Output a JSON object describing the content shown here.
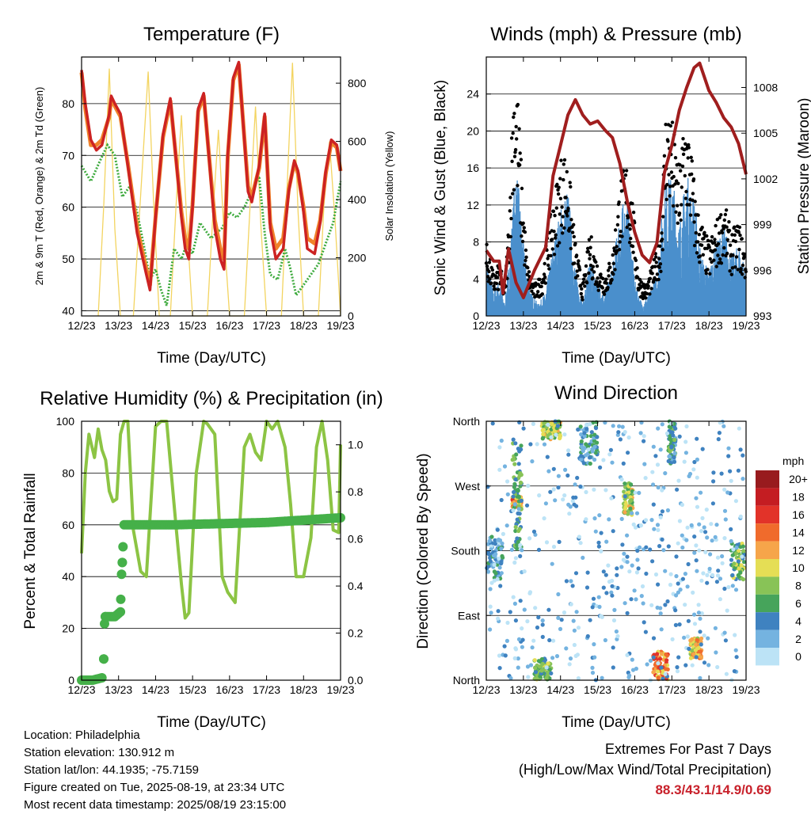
{
  "temperature": {
    "title": "Temperature (F)",
    "xlabel": "Time (Day/UTC)",
    "ylabel_left": "2m & 9m T (Red, Orange) & 2m Td (Green)",
    "ylabel_right": "Solar Insolation (Yellow)"
  },
  "winds": {
    "title": "Winds (mph) & Pressure (mb)",
    "xlabel": "Time (Day/UTC)",
    "ylabel_left": "Sonic Wind & Gust (Blue, Black)",
    "ylabel_right": "Station Pressure (Maroon)"
  },
  "humidity": {
    "title": "Relative Humidity (%) & Precipitation (in)",
    "xlabel": "Time (Day/UTC)",
    "ylabel_left": "Percent & Total Rainfall"
  },
  "direction": {
    "title": "Wind Direction",
    "xlabel": "Time (Day/UTC)",
    "ylabel_left": "Direction (Colored By Speed)",
    "legend_unit": "mph",
    "legend_labels": [
      "20+",
      "18",
      "16",
      "14",
      "12",
      "10",
      "8",
      "6",
      "4",
      "2",
      "0"
    ],
    "legend_colors": [
      "#981b1e",
      "#c41d22",
      "#e23329",
      "#f06b2c",
      "#f6a54a",
      "#e5de55",
      "#88c357",
      "#46a45b",
      "#3f82c0",
      "#74b3e0",
      "#bce3f6"
    ]
  },
  "info": {
    "location": "Location: Philadelphia",
    "elevation": "Station elevation: 130.912 m",
    "latlon": "Station lat/lon: 44.1935; -75.7159",
    "created": "Figure created on Tue, 2025-08-19, at 23:34 UTC",
    "latest": "Most recent data timestamp: 2025/08/19 23:15:00"
  },
  "extremes": {
    "line1": "Extremes For Past 7 Days",
    "line2": "(High/Low/Max Wind/Total Precipitation)",
    "values": "88.3/43.1/14.9/0.69"
  },
  "chart_data": [
    {
      "type": "line",
      "title": "Temperature (F)",
      "xlabel": "Time (Day/UTC)",
      "ylabel": "2m & 9m T (Red, Orange) & 2m Td (Green)",
      "y2label": "Solar Insolation (Yellow)",
      "x_ticks": [
        "12/23",
        "13/23",
        "14/23",
        "15/23",
        "16/23",
        "17/23",
        "18/23",
        "19/23"
      ],
      "xlim": [
        0,
        7
      ],
      "ylim": [
        39,
        89
      ],
      "y_ticks": [
        40,
        50,
        60,
        70,
        80
      ],
      "y2lim": [
        0,
        890
      ],
      "y2_ticks": [
        0,
        200,
        400,
        600,
        800
      ],
      "grid": true,
      "series": [
        {
          "name": "2m T",
          "color": "#cc2222",
          "axis": "left",
          "x": [
            0,
            0.1,
            0.25,
            0.4,
            0.55,
            0.75,
            0.8,
            0.9,
            1.05,
            1.25,
            1.5,
            1.75,
            1.85,
            2.0,
            2.2,
            2.4,
            2.7,
            2.8,
            2.9,
            3.0,
            3.15,
            3.3,
            3.6,
            3.75,
            3.85,
            3.95,
            4.1,
            4.25,
            4.5,
            4.6,
            4.8,
            4.95,
            5.1,
            5.25,
            5.45,
            5.6,
            5.75,
            5.85,
            6.0,
            6.1,
            6.3,
            6.45,
            6.6,
            6.75,
            6.9,
            7.0
          ],
          "y": [
            86.5,
            80,
            73,
            71,
            72,
            78,
            81.5,
            80,
            78,
            68,
            55,
            47,
            44,
            58,
            74,
            81,
            58,
            52,
            50,
            60,
            79,
            82,
            56,
            50,
            48,
            70,
            85,
            88,
            63,
            61,
            68,
            78,
            56,
            50,
            52,
            63,
            69,
            67,
            59,
            52,
            51,
            57,
            67,
            73,
            72,
            67
          ]
        },
        {
          "name": "9m T",
          "color": "#f0822a",
          "axis": "left",
          "x": [
            0,
            0.1,
            0.25,
            0.4,
            0.55,
            0.75,
            0.8,
            0.9,
            1.05,
            1.25,
            1.5,
            1.75,
            1.85,
            2.0,
            2.2,
            2.4,
            2.7,
            2.8,
            2.9,
            3.0,
            3.15,
            3.3,
            3.6,
            3.75,
            3.85,
            3.95,
            4.1,
            4.25,
            4.5,
            4.6,
            4.8,
            4.95,
            5.1,
            5.25,
            5.45,
            5.6,
            5.75,
            5.85,
            6.0,
            6.1,
            6.3,
            6.45,
            6.6,
            6.75,
            6.9,
            7.0
          ],
          "y": [
            86,
            79,
            72,
            72,
            73,
            77.5,
            81,
            79.5,
            77.5,
            68.5,
            56,
            48,
            45,
            58,
            73.5,
            80.5,
            59,
            54,
            52,
            60.5,
            78.5,
            81.5,
            57.5,
            52,
            50,
            69.5,
            84.5,
            87.5,
            64,
            62,
            67.5,
            77.5,
            57,
            52,
            54,
            63.5,
            68.5,
            66.5,
            60,
            54,
            53,
            57.5,
            66.5,
            72.5,
            71.5,
            67
          ]
        },
        {
          "name": "2m Td",
          "color": "#3fab3f",
          "axis": "left",
          "x": [
            0,
            0.25,
            0.5,
            0.7,
            0.9,
            1.1,
            1.3,
            1.5,
            1.7,
            1.85,
            2.0,
            2.15,
            2.3,
            2.5,
            2.7,
            2.85,
            3.0,
            3.2,
            3.5,
            3.8,
            4.0,
            4.2,
            4.4,
            4.6,
            4.8,
            4.95,
            5.1,
            5.3,
            5.5,
            5.65,
            5.8,
            6.0,
            6.2,
            6.4,
            6.6,
            6.8,
            7.0
          ],
          "y": [
            68,
            65,
            69,
            72,
            70,
            62,
            64,
            59,
            52,
            46,
            48,
            44,
            41,
            52,
            50,
            53,
            51,
            57,
            54,
            56,
            59,
            58,
            60,
            63,
            66,
            55,
            47,
            46,
            52,
            48,
            43,
            45,
            47,
            49,
            53,
            57,
            65
          ]
        },
        {
          "name": "Solar Insolation",
          "color": "#f3d460",
          "axis": "right",
          "x": [
            0.45,
            0.6,
            0.75,
            0.9,
            1.05,
            1.4,
            1.6,
            1.8,
            1.95,
            2.1,
            2.4,
            2.55,
            2.7,
            2.85,
            3.0,
            3.4,
            3.55,
            3.7,
            3.85,
            4.0,
            4.4,
            4.55,
            4.7,
            4.85,
            5.0,
            5.4,
            5.55,
            5.7,
            5.85,
            6.0,
            6.4,
            6.55,
            6.7,
            6.85,
            7.0
          ],
          "y": [
            0,
            380,
            850,
            300,
            0,
            0,
            420,
            840,
            380,
            0,
            0,
            370,
            690,
            310,
            0,
            0,
            350,
            640,
            280,
            0,
            0,
            370,
            720,
            300,
            0,
            0,
            430,
            870,
            360,
            0,
            0,
            380,
            600,
            330,
            0
          ]
        }
      ]
    },
    {
      "type": "line",
      "title": "Winds (mph) & Pressure (mb)",
      "xlabel": "Time (Day/UTC)",
      "ylabel": "Sonic Wind & Gust (Blue, Black)",
      "y2label": "Station Pressure (Maroon)",
      "x_ticks": [
        "12/23",
        "13/23",
        "14/23",
        "15/23",
        "16/23",
        "17/23",
        "18/23",
        "19/23"
      ],
      "xlim": [
        0,
        7
      ],
      "ylim": [
        0,
        28
      ],
      "y_ticks": [
        0,
        4,
        8,
        12,
        16,
        20,
        24
      ],
      "y2lim": [
        993,
        1010
      ],
      "y2_ticks": [
        993,
        996,
        999,
        1002,
        1005,
        1008
      ],
      "grid": true,
      "series": [
        {
          "name": "Sonic Wind",
          "color": "#4a8fcc",
          "axis": "left",
          "x": [
            0,
            0.2,
            0.35,
            0.5,
            0.65,
            0.8,
            0.9,
            1.0,
            1.2,
            1.4,
            1.6,
            1.8,
            2.0,
            2.2,
            2.4,
            2.6,
            2.8,
            3.0,
            3.2,
            3.4,
            3.6,
            3.8,
            4.0,
            4.2,
            4.4,
            4.6,
            4.8,
            5.0,
            5.2,
            5.4,
            5.6,
            5.8,
            6.0,
            6.2,
            6.4,
            6.6,
            6.8,
            7.0
          ],
          "y": [
            5,
            2,
            3,
            1,
            6,
            13,
            10,
            6,
            2,
            1,
            2,
            6,
            9,
            11,
            4,
            1,
            5,
            3,
            2,
            4,
            9,
            10,
            3,
            1,
            2,
            4,
            11,
            12,
            8,
            12,
            10,
            5,
            4,
            6,
            8,
            5,
            6,
            4
          ]
        },
        {
          "name": "Gust",
          "color": "#000000",
          "axis": "left",
          "x": [
            0,
            0.2,
            0.35,
            0.5,
            0.6,
            0.75,
            0.85,
            0.95,
            1.1,
            1.3,
            1.5,
            1.7,
            1.9,
            2.05,
            2.2,
            2.4,
            2.6,
            2.8,
            3.0,
            3.2,
            3.4,
            3.6,
            3.8,
            3.95,
            4.1,
            4.3,
            4.5,
            4.7,
            4.85,
            5.0,
            5.2,
            5.35,
            5.5,
            5.65,
            5.8,
            6.0,
            6.2,
            6.4,
            6.6,
            6.8,
            7.0
          ],
          "y": [
            7,
            4,
            5,
            3,
            9,
            25,
            21,
            14,
            5,
            3,
            4,
            9,
            13,
            16,
            15,
            7,
            3,
            8,
            5,
            4,
            6,
            13,
            15,
            11,
            4,
            3,
            5,
            8,
            21,
            19,
            14,
            20,
            17,
            11,
            9,
            7,
            9,
            11,
            8,
            9,
            6
          ]
        },
        {
          "name": "Station Pressure",
          "color": "#a01e1e",
          "axis": "right",
          "x": [
            0,
            0.2,
            0.35,
            0.45,
            0.6,
            0.8,
            1.0,
            1.3,
            1.6,
            1.8,
            2.0,
            2.2,
            2.4,
            2.6,
            2.8,
            3.0,
            3.2,
            3.4,
            3.6,
            3.8,
            4.0,
            4.2,
            4.4,
            4.6,
            4.8,
            5.0,
            5.2,
            5.4,
            5.6,
            5.75,
            6.0,
            6.2,
            6.4,
            6.6,
            6.8,
            7.0
          ],
          "y": [
            997.3,
            996.6,
            996.6,
            994.5,
            997.4,
            995.2,
            994.2,
            996.0,
            997.5,
            1002.2,
            1004.2,
            1006.2,
            1007.2,
            1006.2,
            1005.6,
            1005.8,
            1005.2,
            1004.7,
            1003.0,
            1000.5,
            998.5,
            997.0,
            996.5,
            997.8,
            1002.4,
            1004.2,
            1006.5,
            1008.0,
            1009.3,
            1009.6,
            1007.8,
            1007.0,
            1006.0,
            1005.4,
            1004.3,
            1002.3
          ]
        }
      ]
    },
    {
      "type": "line",
      "title": "Relative Humidity (%) & Precipitation (in)",
      "xlabel": "Time (Day/UTC)",
      "ylabel": "Percent & Total Rainfall",
      "x_ticks": [
        "12/23",
        "13/23",
        "14/23",
        "15/23",
        "16/23",
        "17/23",
        "18/23",
        "19/23"
      ],
      "xlim": [
        0,
        7
      ],
      "ylim": [
        0,
        100
      ],
      "y_ticks": [
        0,
        20,
        40,
        60,
        80,
        100
      ],
      "y2lim": [
        0,
        1.1
      ],
      "y2_ticks": [
        0.0,
        0.2,
        0.4,
        0.6,
        0.8,
        1.0
      ],
      "grid": true,
      "series": [
        {
          "name": "Relative Humidity",
          "color": "#8cc444",
          "axis": "left",
          "x": [
            0,
            0.1,
            0.2,
            0.35,
            0.45,
            0.55,
            0.65,
            0.75,
            0.85,
            0.95,
            1.05,
            1.15,
            1.25,
            1.4,
            1.6,
            1.75,
            2.0,
            2.15,
            2.3,
            2.55,
            2.7,
            2.8,
            2.9,
            3.1,
            3.3,
            3.4,
            3.6,
            3.8,
            3.95,
            4.15,
            4.4,
            4.55,
            4.7,
            4.85,
            5.0,
            5.15,
            5.3,
            5.5,
            5.65,
            5.8,
            6.0,
            6.2,
            6.35,
            6.5,
            6.65,
            6.8,
            6.95,
            7.0
          ],
          "y": [
            49,
            80,
            95,
            86,
            97,
            89,
            85,
            73,
            69,
            70,
            95,
            100,
            100,
            58,
            42,
            40,
            98,
            100,
            100,
            60,
            37,
            24,
            26,
            80,
            100,
            99,
            95,
            40,
            34,
            30,
            90,
            95,
            88,
            85,
            100,
            97,
            100,
            90,
            68,
            40,
            40,
            55,
            90,
            100,
            85,
            58,
            57,
            91
          ]
        },
        {
          "name": "Total Rainfall",
          "color": "#45b049",
          "axis": "right",
          "x": [
            0,
            0.3,
            0.55,
            0.6,
            0.62,
            0.64,
            0.68,
            0.9,
            1.05,
            1.08,
            1.1,
            1.13,
            1.15,
            2.5,
            5.0,
            6.0,
            7.0
          ],
          "y": [
            0.0,
            0.0,
            0.01,
            0.09,
            0.24,
            0.27,
            0.27,
            0.27,
            0.29,
            0.45,
            0.5,
            0.6,
            0.66,
            0.66,
            0.67,
            0.68,
            0.69
          ]
        }
      ]
    },
    {
      "type": "scatter",
      "title": "Wind Direction",
      "xlabel": "Time (Day/UTC)",
      "ylabel": "Direction (Colored By Speed)",
      "x_ticks": [
        "12/23",
        "13/23",
        "14/23",
        "15/23",
        "16/23",
        "17/23",
        "18/23",
        "19/23"
      ],
      "xlim": [
        0,
        7
      ],
      "y_ticks": [
        "North",
        "East",
        "South",
        "West",
        "North"
      ],
      "ylim": [
        0,
        360
      ],
      "colorbar_unit": "mph",
      "clusters": [
        {
          "x": [
            0.05,
            0.45
          ],
          "dir": [
            140,
            200
          ],
          "speed": 3
        },
        {
          "x": [
            0.7,
            0.95
          ],
          "dir": [
            240,
            255
          ],
          "speed": 13
        },
        {
          "x": [
            0.7,
            0.95
          ],
          "dir": [
            180,
            330
          ],
          "speed": 6
        },
        {
          "x": [
            1.3,
            1.75
          ],
          "dir": [
            0,
            30
          ],
          "speed": 7
        },
        {
          "x": [
            1.5,
            2.0
          ],
          "dir": [
            335,
            360
          ],
          "speed": 9
        },
        {
          "x": [
            2.5,
            3.0
          ],
          "dir": [
            300,
            360
          ],
          "speed": 4
        },
        {
          "x": [
            3.7,
            3.95
          ],
          "dir": [
            230,
            275
          ],
          "speed": 9
        },
        {
          "x": [
            4.5,
            4.9
          ],
          "dir": [
            0,
            40
          ],
          "speed": 13
        },
        {
          "x": [
            4.9,
            5.1
          ],
          "dir": [
            300,
            360
          ],
          "speed": 5
        },
        {
          "x": [
            5.5,
            5.8
          ],
          "dir": [
            30,
            60
          ],
          "speed": 11
        },
        {
          "x": [
            6.6,
            6.95
          ],
          "dir": [
            140,
            190
          ],
          "speed": 7
        },
        {
          "x": [
            0.0,
            7.0
          ],
          "dir": [
            0,
            360
          ],
          "speed": 2
        }
      ]
    }
  ]
}
